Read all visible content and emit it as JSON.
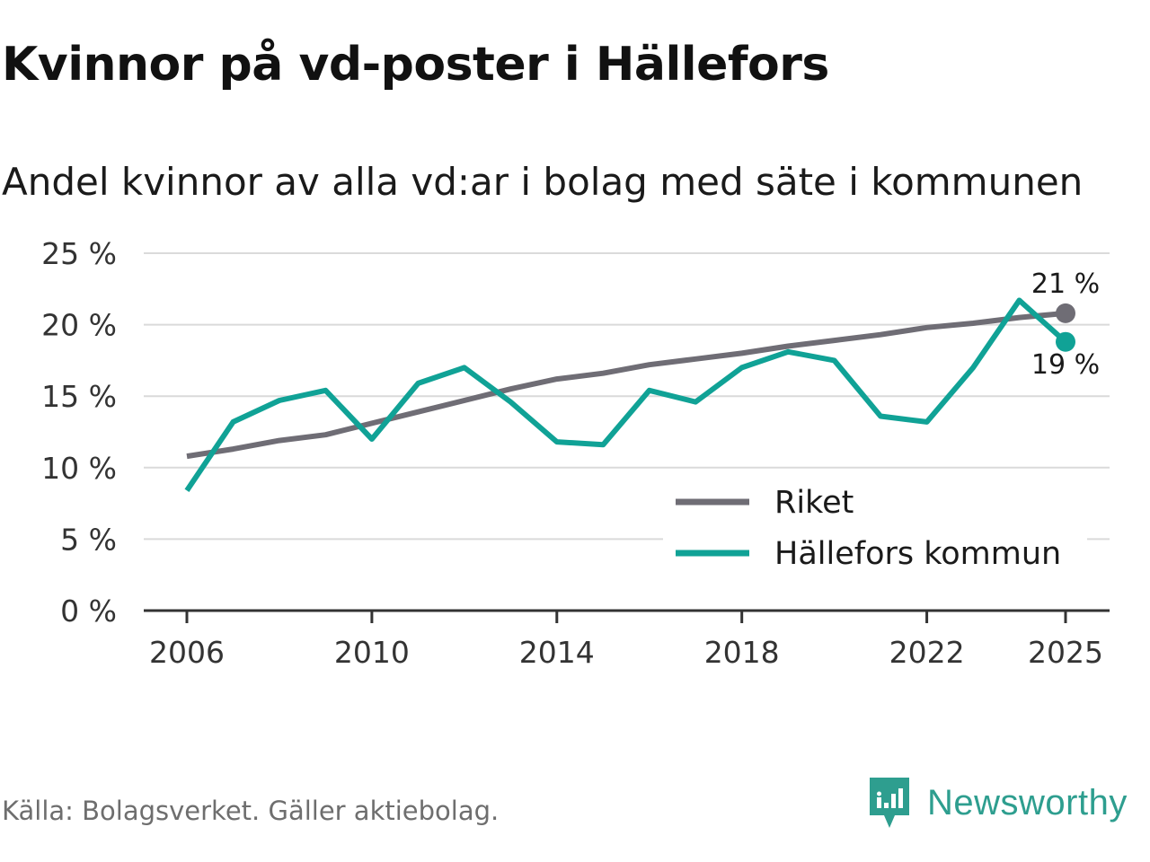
{
  "title": "Kvinnor på vd-poster i Hällefors",
  "subtitle": "Andel kvinnor av alla vd:ar i bolag med säte i kommunen",
  "source": "Källa: Bolagsverket. Gäller aktiebolag.",
  "brand": "Newsworthy",
  "colors": {
    "riket": "#6f6d75",
    "hallefors": "#10a296",
    "brand": "#2e9e8f"
  },
  "chart_data": {
    "type": "line",
    "x": [
      2006,
      2007,
      2008,
      2009,
      2010,
      2011,
      2012,
      2013,
      2014,
      2015,
      2016,
      2017,
      2018,
      2019,
      2020,
      2021,
      2022,
      2023,
      2024,
      2025
    ],
    "series": [
      {
        "name": "Riket",
        "color": "#6f6d75",
        "values": [
          10.8,
          11.3,
          11.9,
          12.3,
          13.1,
          13.9,
          14.7,
          15.5,
          16.2,
          16.6,
          17.2,
          17.6,
          18.0,
          18.5,
          18.9,
          19.3,
          19.8,
          20.1,
          20.5,
          20.8
        ],
        "end_label": "21 %"
      },
      {
        "name": "Hällefors kommun",
        "color": "#10a296",
        "values": [
          8.4,
          13.2,
          14.7,
          15.4,
          12.0,
          15.9,
          17.0,
          14.6,
          11.8,
          11.6,
          15.4,
          14.6,
          17.0,
          18.1,
          17.5,
          13.6,
          13.2,
          17.0,
          21.7,
          18.8
        ],
        "end_label": "19 %"
      }
    ],
    "yticks": [
      "0 %",
      "5 %",
      "10 %",
      "15 %",
      "20 %",
      "25 %"
    ],
    "ytick_values": [
      0,
      5,
      10,
      15,
      20,
      25
    ],
    "xticks": [
      "2006",
      "2010",
      "2014",
      "2018",
      "2022",
      "2025"
    ],
    "xtick_values": [
      2006,
      2010,
      2014,
      2018,
      2022,
      2025
    ],
    "ylim": [
      0,
      25
    ],
    "xlim": [
      2006,
      2025
    ],
    "legend_position": "bottom-right",
    "grid": true
  }
}
